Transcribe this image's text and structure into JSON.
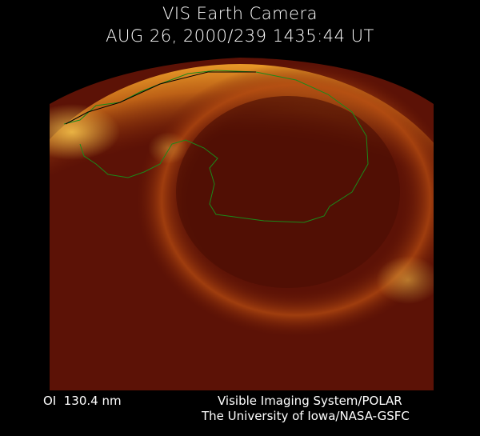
{
  "title": "VIS Earth Camera",
  "timestamp": "AUG 26, 2000/239 1435:44 UT",
  "wavelength": "OI  130.4 nm",
  "credit_line1": "Visible Imaging System/POLAR",
  "credit_line2": "The University of Iowa/NASA-GSFC",
  "colors": {
    "background": "#000000",
    "aurora_bright": "#f0a020",
    "aurora_base": "#5c1206",
    "coastline": "#1a8a1a"
  }
}
